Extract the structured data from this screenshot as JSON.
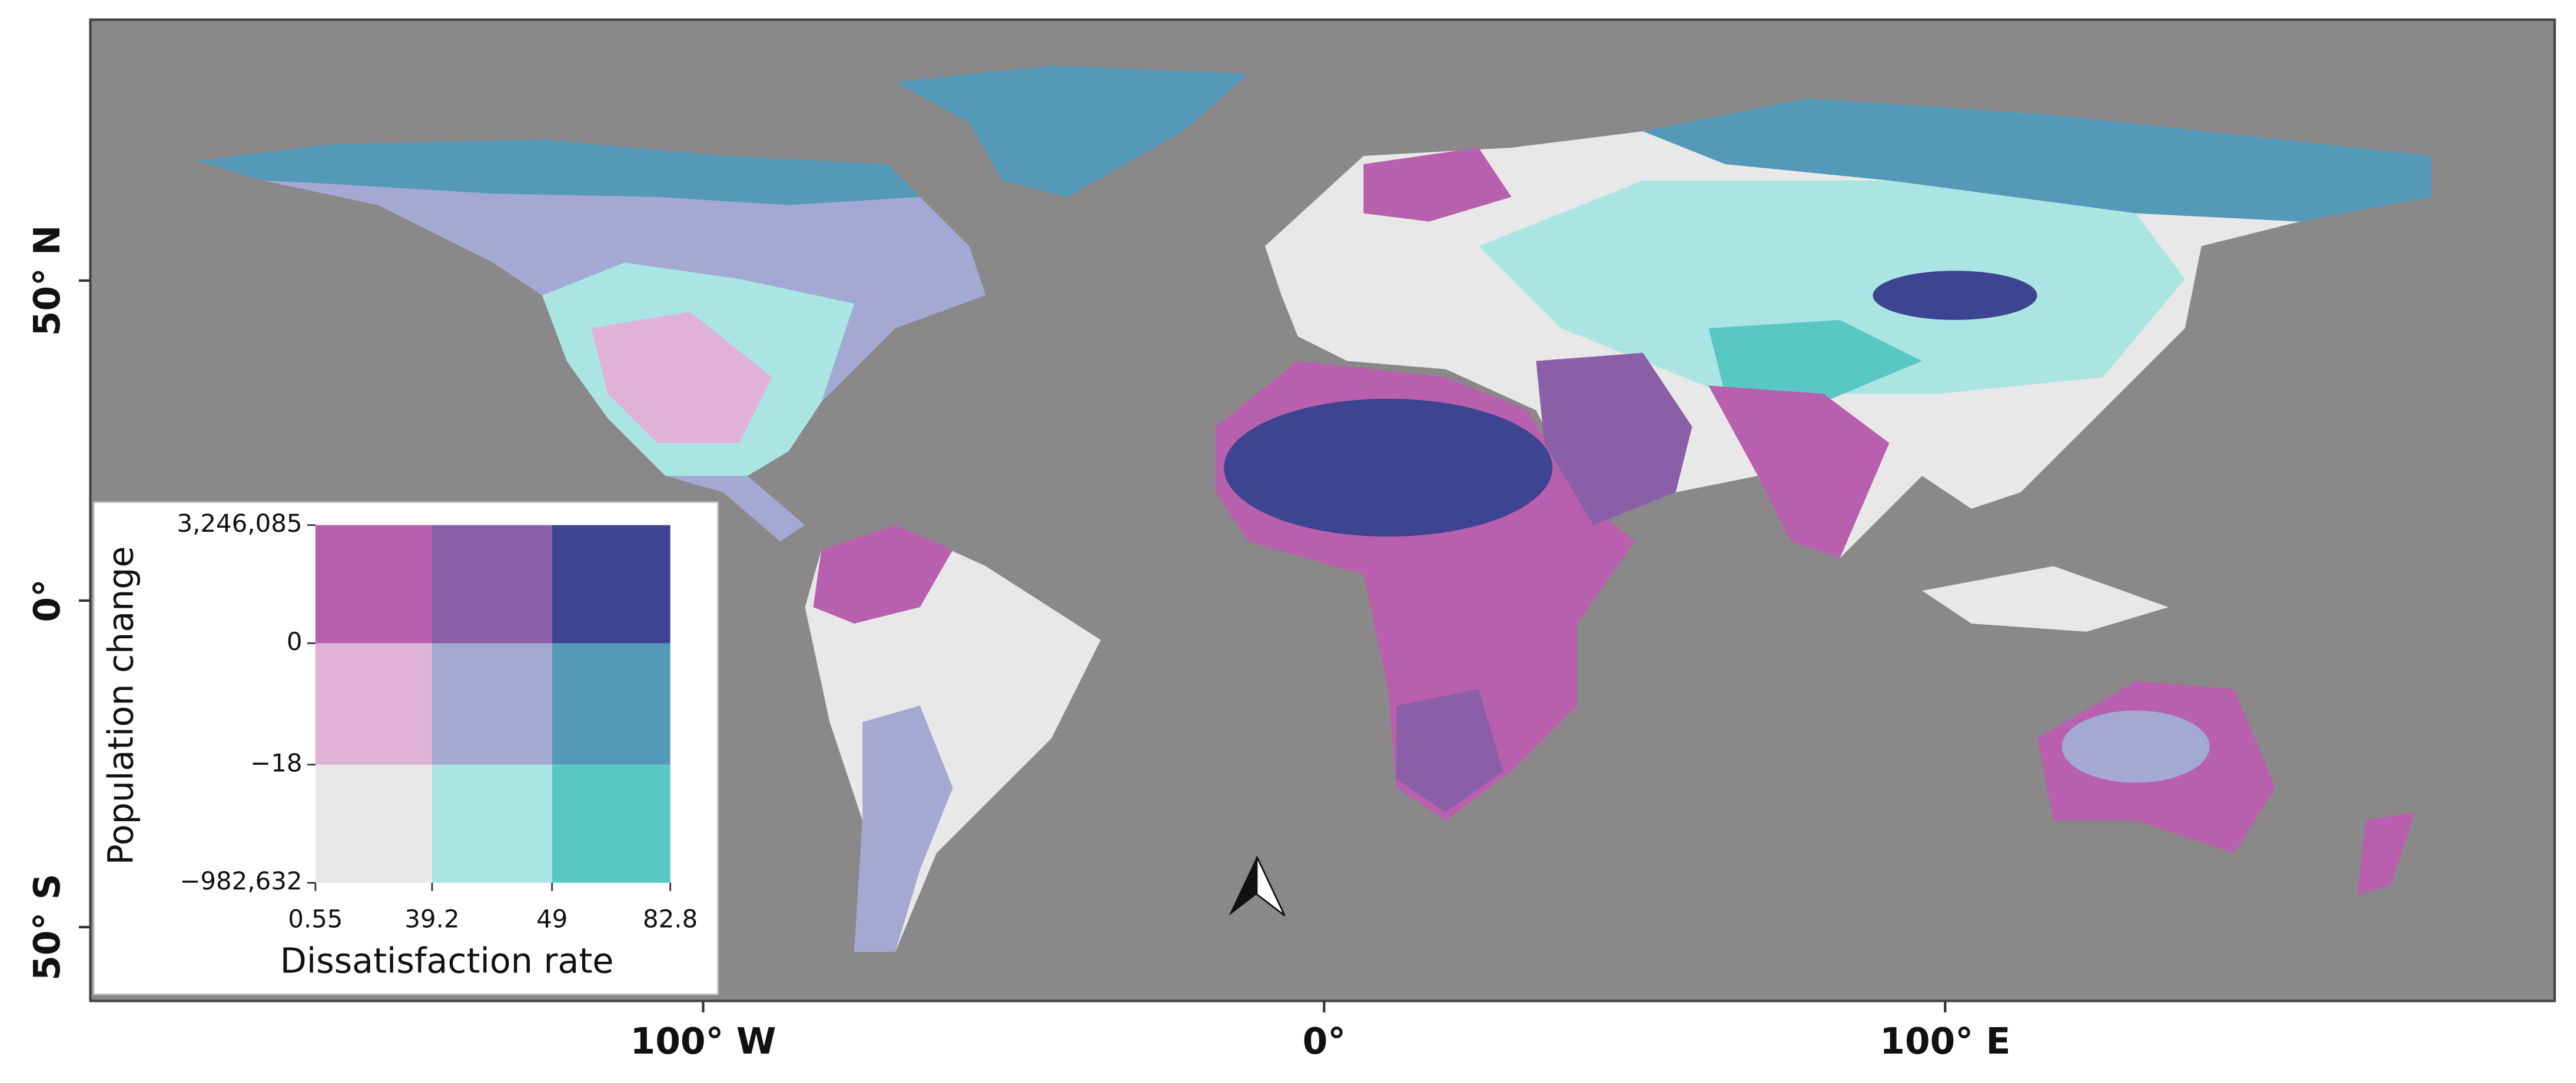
{
  "map": {
    "lat_labels": [
      "50° N",
      "0°",
      "50° S"
    ],
    "lon_labels": [
      "100° W",
      "0°",
      "100° E"
    ]
  },
  "legend": {
    "x_title": "Dissatisfaction rate",
    "y_title": "Population change",
    "x_breaks": [
      "0.55",
      "39.2",
      "49",
      "82.8"
    ],
    "y_breaks": [
      "3,246,085",
      "0",
      "−18",
      "−982,632"
    ],
    "colors": [
      [
        "#b85fad",
        "#8a5fa8",
        "#3d4492"
      ],
      [
        "#dfb2d6",
        "#a3a9d2",
        "#5599b8"
      ],
      [
        "#e8e8e8",
        "#abe5e3",
        "#59c8c5"
      ]
    ]
  }
}
